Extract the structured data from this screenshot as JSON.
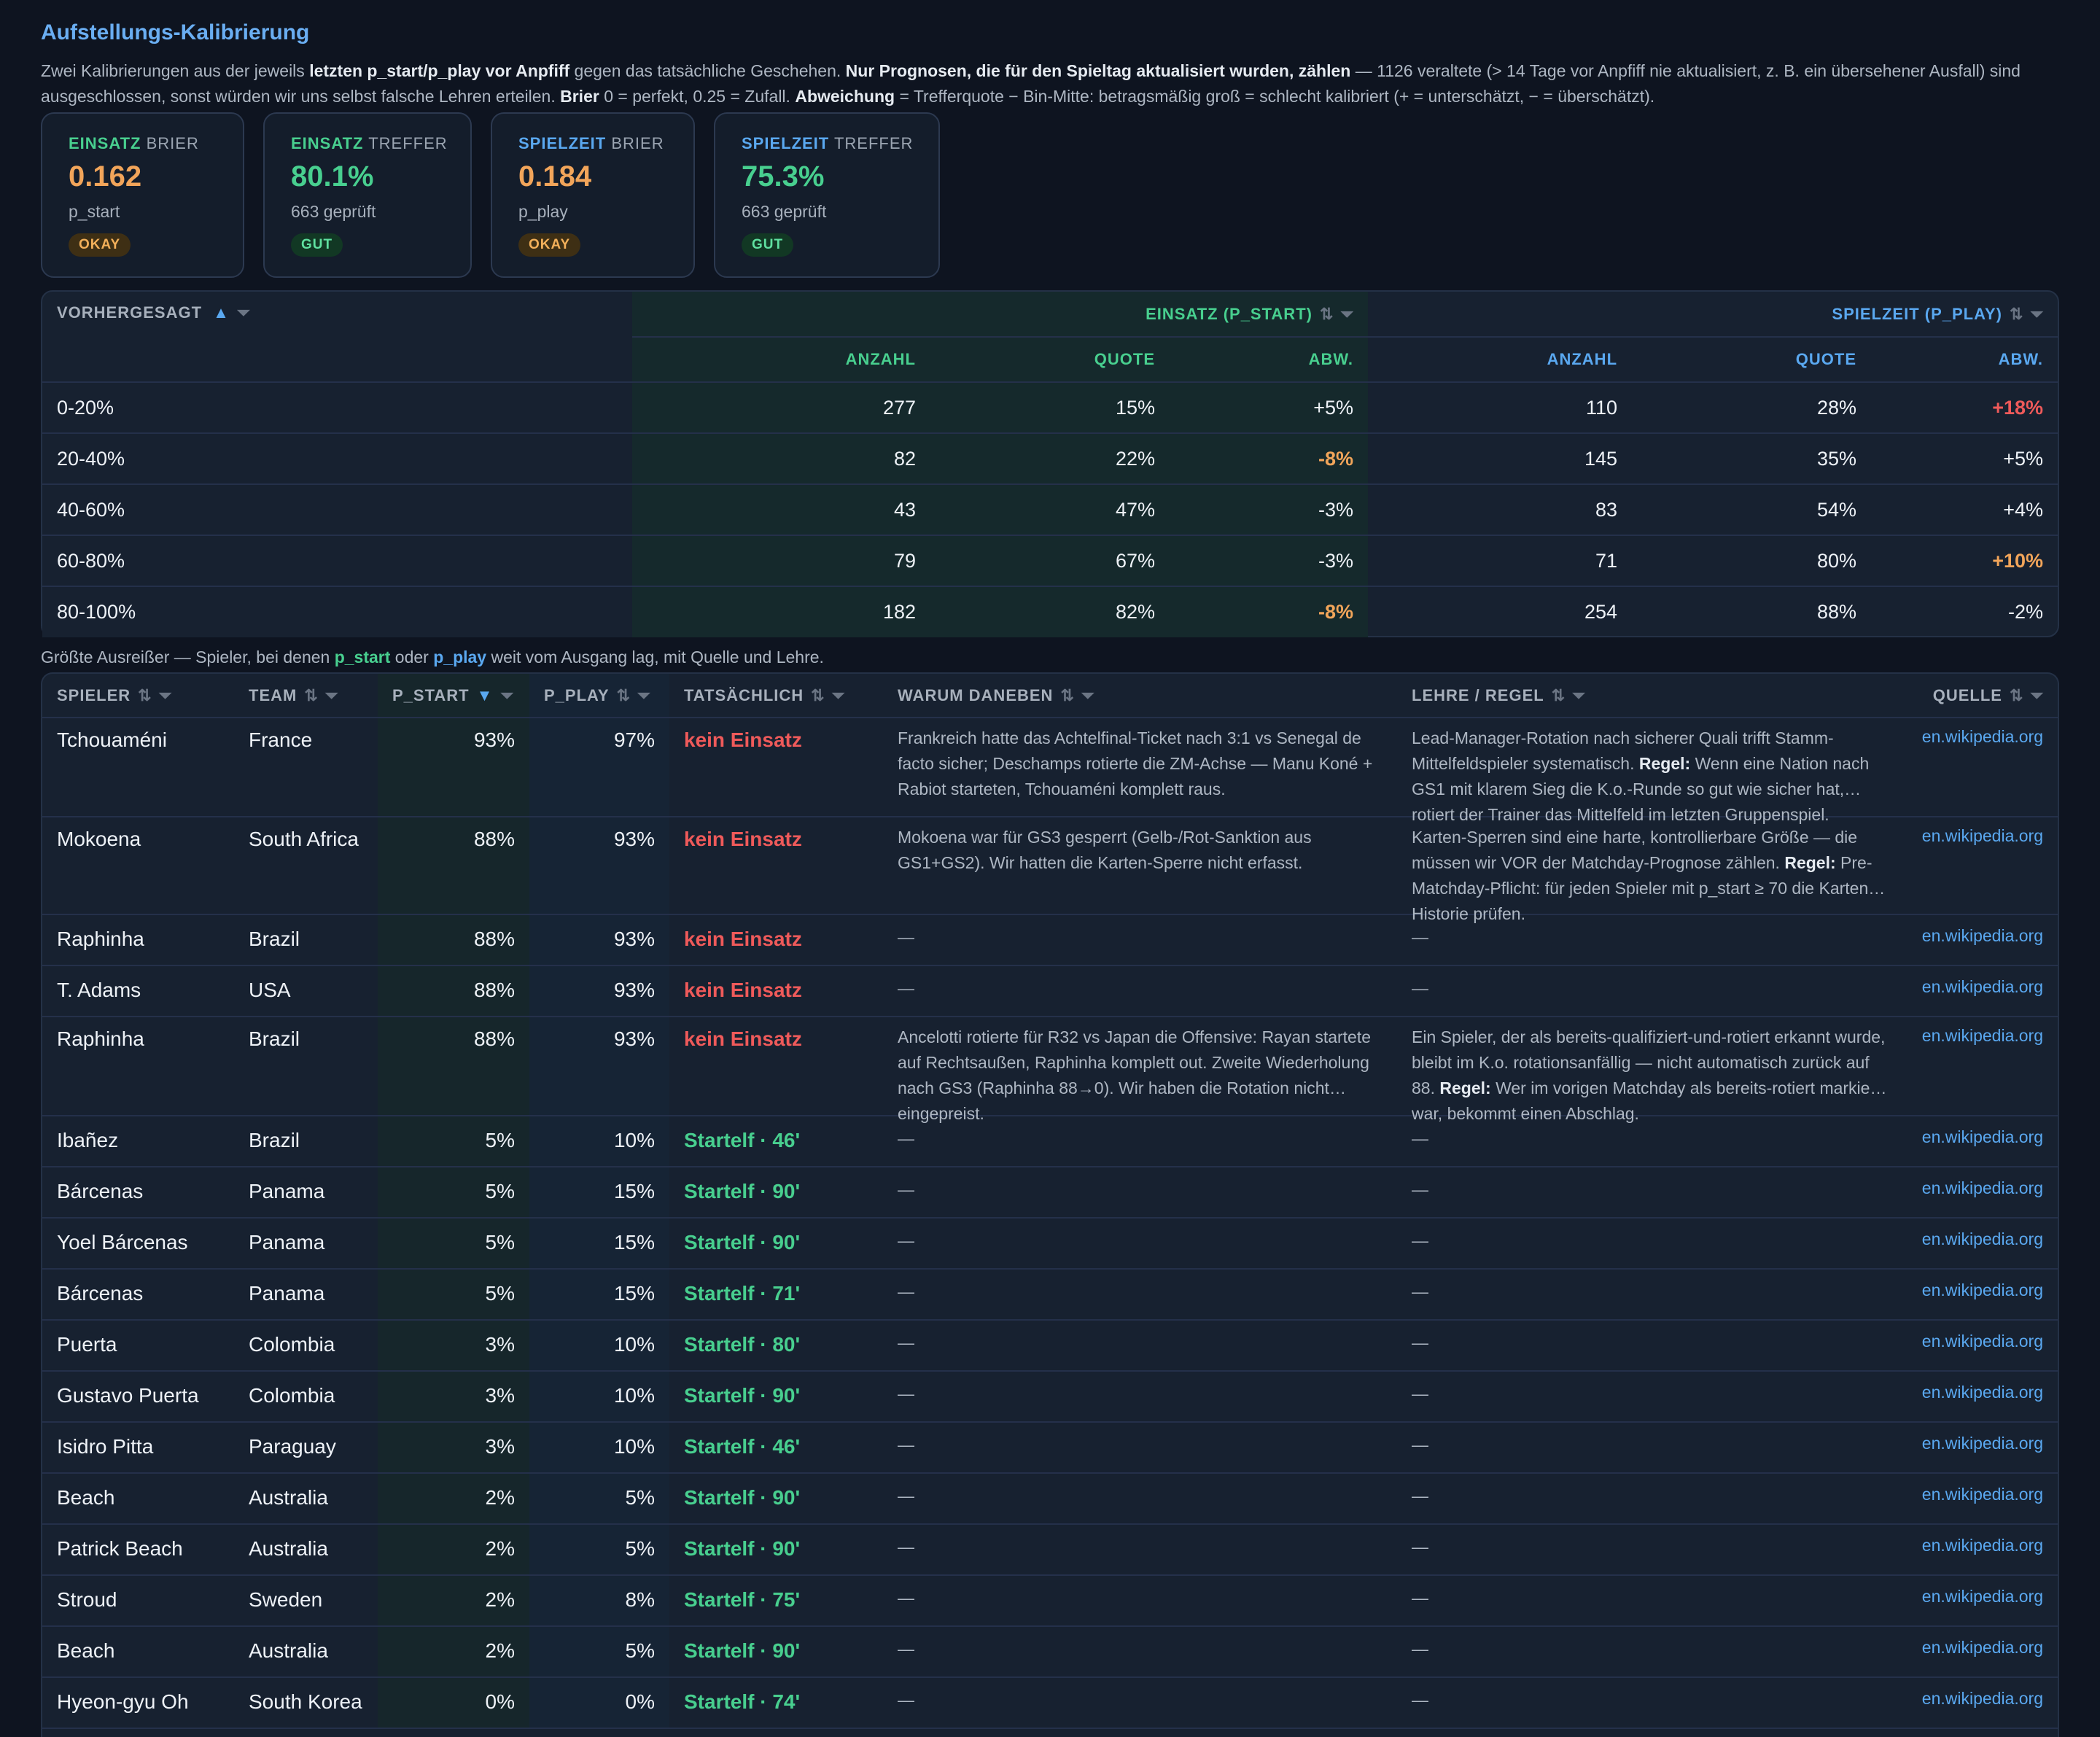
{
  "header": {
    "title": "Aufstellungs-Kalibrierung",
    "intro": {
      "p1": "Zwei Kalibrierungen aus der jeweils ",
      "b1": "letzten p_start/p_play vor Anpfiff",
      "p2": " gegen das tatsächliche Geschehen. ",
      "b2": "Nur Prognosen, die für den Spieltag aktualisiert wurden, zählen",
      "p3": " — 1126 veraltete (> 14 Tage vor Anpfiff nie aktualisiert, z. B. ein übersehener Ausfall) sind ausgeschlossen, sonst würden wir uns selbst falsche Lehren erteilen. ",
      "b3": "Brier",
      "p4": " 0 = perfekt, 0.25 = Zufall. ",
      "b4": "Abweichung",
      "p5": " = Trefferquote − Bin-Mitte: betragsmäßig groß = schlecht kalibriert (+ = unterschätzt, − = überschätzt)."
    }
  },
  "cards": [
    {
      "key": "EINSATZ",
      "metric": " BRIER",
      "value": "0.162",
      "sub": "p_start",
      "badge": "OKAY",
      "key_color": "#48cf8f",
      "value_color": "#f2a55a",
      "badge_kind": "okay"
    },
    {
      "key": "EINSATZ",
      "metric": " TREFFER",
      "value": "80.1%",
      "sub": "663 geprüft",
      "badge": "GUT",
      "key_color": "#48cf8f",
      "value_color": "#48cf8f",
      "badge_kind": "gut"
    },
    {
      "key": "SPIELZEIT",
      "metric": " BRIER",
      "value": "0.184",
      "sub": "p_play",
      "badge": "OKAY",
      "key_color": "#5aa8f0",
      "value_color": "#f2a55a",
      "badge_kind": "okay"
    },
    {
      "key": "SPIELZEIT",
      "metric": " TREFFER",
      "value": "75.3%",
      "sub": "663 geprüft",
      "badge": "GUT",
      "key_color": "#5aa8f0",
      "value_color": "#48cf8f",
      "badge_kind": "gut"
    }
  ],
  "calibration": {
    "header_bin": "VORHERGESAGT",
    "group_start": "EINSATZ (P_START)",
    "group_play": "SPIELZEIT (P_PLAY)",
    "col_count": "ANZAHL",
    "col_rate": "QUOTE",
    "col_dev": "ABW.",
    "rows": [
      {
        "bin": "0-20%",
        "s_count": "277",
        "s_rate": "15%",
        "s_dev": "+5%",
        "s_tone": "normal",
        "p_count": "110",
        "p_rate": "28%",
        "p_dev": "+18%",
        "p_tone": "red"
      },
      {
        "bin": "20-40%",
        "s_count": "82",
        "s_rate": "22%",
        "s_dev": "-8%",
        "s_tone": "orange",
        "p_count": "145",
        "p_rate": "35%",
        "p_dev": "+5%",
        "p_tone": "normal"
      },
      {
        "bin": "40-60%",
        "s_count": "43",
        "s_rate": "47%",
        "s_dev": "-3%",
        "s_tone": "normal",
        "p_count": "83",
        "p_rate": "54%",
        "p_dev": "+4%",
        "p_tone": "normal"
      },
      {
        "bin": "60-80%",
        "s_count": "79",
        "s_rate": "67%",
        "s_dev": "-3%",
        "s_tone": "normal",
        "p_count": "71",
        "p_rate": "80%",
        "p_dev": "+10%",
        "p_tone": "orange"
      },
      {
        "bin": "80-100%",
        "s_count": "182",
        "s_rate": "82%",
        "s_dev": "-8%",
        "s_tone": "orange",
        "p_count": "254",
        "p_rate": "88%",
        "p_dev": "-2%",
        "p_tone": "normal"
      }
    ]
  },
  "outliers": {
    "caption": {
      "p1": "Größte Ausreißer — Spieler, bei denen ",
      "b1": "p_start",
      "p2": " oder ",
      "b2": "p_play",
      "p3": " weit vom Ausgang lag, mit Quelle und Lehre."
    },
    "headers": {
      "player": "SPIELER",
      "team": "TEAM",
      "p_start": "P_START",
      "p_play": "P_PLAY",
      "actual": "TATSÄCHLICH",
      "why": "WARUM DANEBEN",
      "lesson": "LEHRE / REGEL",
      "source": "QUELLE"
    },
    "rows": [
      {
        "player": "Tchouaméni",
        "team": "France",
        "p_start": "93%",
        "p_play": "97%",
        "actual": "kein Einsatz",
        "actual_kind": "miss",
        "why": "Frankreich hatte das Achtelfinal-Ticket nach 3:1 vs Senegal de facto sicher; Deschamps rotierte die ZM-Achse — Manu Koné + Rabiot starteten, Tchouaméni komplett raus.",
        "lesson": "Lead-Manager-Rotation nach sicherer Quali trifft Stamm-Mittelfeldspieler systematisch.",
        "lesson_bold": "Regel:",
        "lesson_rest": "Wenn eine Nation nach GS1 mit klarem Sieg die K.o.-Runde so gut wie sicher hat, rotiert der Trainer das Mittelfeld im letzten Gruppenspiel.",
        "source": "en.wikipedia.org"
      },
      {
        "player": "Mokoena",
        "team": "South Africa",
        "p_start": "88%",
        "p_play": "93%",
        "actual": "kein Einsatz",
        "actual_kind": "miss",
        "why": "Mokoena war für GS3 gesperrt (Gelb-/Rot-Sanktion aus GS1+GS2). Wir hatten die Karten-Sperre nicht erfasst.",
        "lesson": "Karten-Sperren sind eine harte, kontrollierbare Größe — die müssen wir VOR der Matchday-Prognose zählen.",
        "lesson_bold": "Regel:",
        "lesson_rest": "Pre-Matchday-Pflicht: für jeden Spieler mit p_start ≥ 70 die Karten-Historie prüfen.",
        "source": "en.wikipedia.org"
      },
      {
        "player": "Raphinha",
        "team": "Brazil",
        "p_start": "88%",
        "p_play": "93%",
        "actual": "kein Einsatz",
        "actual_kind": "miss",
        "why": "—",
        "lesson": "—",
        "lesson_bold": "",
        "lesson_rest": "",
        "source": "en.wikipedia.org"
      },
      {
        "player": "T. Adams",
        "team": "USA",
        "p_start": "88%",
        "p_play": "93%",
        "actual": "kein Einsatz",
        "actual_kind": "miss",
        "why": "—",
        "lesson": "—",
        "lesson_bold": "",
        "lesson_rest": "",
        "source": "en.wikipedia.org"
      },
      {
        "player": "Raphinha",
        "team": "Brazil",
        "p_start": "88%",
        "p_play": "93%",
        "actual": "kein Einsatz",
        "actual_kind": "miss",
        "why": "Ancelotti rotierte für R32 vs Japan die Offensive: Rayan startete auf Rechtsaußen, Raphinha komplett out. Zweite Wiederholung nach GS3 (Raphinha 88→0). Wir haben die Rotation nicht eingepreist.",
        "lesson": "Ein Spieler, der als bereits-qualifiziert-und-rotiert erkannt wurde, bleibt im K.o. rotationsanfällig — nicht automatisch zurück auf 88.",
        "lesson_bold": "Regel:",
        "lesson_rest": "Wer im vorigen Matchday als bereits-rotiert markiert war, bekommt einen Abschlag.",
        "source": "en.wikipedia.org"
      },
      {
        "player": "Ibañez",
        "team": "Brazil",
        "p_start": "5%",
        "p_play": "10%",
        "actual": "Startelf · 46'",
        "actual_kind": "hit",
        "why": "—",
        "lesson": "—",
        "lesson_bold": "",
        "lesson_rest": "",
        "source": "en.wikipedia.org"
      },
      {
        "player": "Bárcenas",
        "team": "Panama",
        "p_start": "5%",
        "p_play": "15%",
        "actual": "Startelf · 90'",
        "actual_kind": "hit",
        "why": "—",
        "lesson": "—",
        "lesson_bold": "",
        "lesson_rest": "",
        "source": "en.wikipedia.org"
      },
      {
        "player": "Yoel Bárcenas",
        "team": "Panama",
        "p_start": "5%",
        "p_play": "15%",
        "actual": "Startelf · 90'",
        "actual_kind": "hit",
        "why": "—",
        "lesson": "—",
        "lesson_bold": "",
        "lesson_rest": "",
        "source": "en.wikipedia.org"
      },
      {
        "player": "Bárcenas",
        "team": "Panama",
        "p_start": "5%",
        "p_play": "15%",
        "actual": "Startelf · 71'",
        "actual_kind": "hit",
        "why": "—",
        "lesson": "—",
        "lesson_bold": "",
        "lesson_rest": "",
        "source": "en.wikipedia.org"
      },
      {
        "player": "Puerta",
        "team": "Colombia",
        "p_start": "3%",
        "p_play": "10%",
        "actual": "Startelf · 80'",
        "actual_kind": "hit",
        "why": "—",
        "lesson": "—",
        "lesson_bold": "",
        "lesson_rest": "",
        "source": "en.wikipedia.org"
      },
      {
        "player": "Gustavo Puerta",
        "team": "Colombia",
        "p_start": "3%",
        "p_play": "10%",
        "actual": "Startelf · 90'",
        "actual_kind": "hit",
        "why": "—",
        "lesson": "—",
        "lesson_bold": "",
        "lesson_rest": "",
        "source": "en.wikipedia.org"
      },
      {
        "player": "Isidro Pitta",
        "team": "Paraguay",
        "p_start": "3%",
        "p_play": "10%",
        "actual": "Startelf · 46'",
        "actual_kind": "hit",
        "why": "—",
        "lesson": "—",
        "lesson_bold": "",
        "lesson_rest": "",
        "source": "en.wikipedia.org"
      },
      {
        "player": "Beach",
        "team": "Australia",
        "p_start": "2%",
        "p_play": "5%",
        "actual": "Startelf · 90'",
        "actual_kind": "hit",
        "why": "—",
        "lesson": "—",
        "lesson_bold": "",
        "lesson_rest": "",
        "source": "en.wikipedia.org"
      },
      {
        "player": "Patrick Beach",
        "team": "Australia",
        "p_start": "2%",
        "p_play": "5%",
        "actual": "Startelf · 90'",
        "actual_kind": "hit",
        "why": "—",
        "lesson": "—",
        "lesson_bold": "",
        "lesson_rest": "",
        "source": "en.wikipedia.org"
      },
      {
        "player": "Stroud",
        "team": "Sweden",
        "p_start": "2%",
        "p_play": "8%",
        "actual": "Startelf · 75'",
        "actual_kind": "hit",
        "why": "—",
        "lesson": "—",
        "lesson_bold": "",
        "lesson_rest": "",
        "source": "en.wikipedia.org"
      },
      {
        "player": "Beach",
        "team": "Australia",
        "p_start": "2%",
        "p_play": "5%",
        "actual": "Startelf · 90'",
        "actual_kind": "hit",
        "why": "—",
        "lesson": "—",
        "lesson_bold": "",
        "lesson_rest": "",
        "source": "en.wikipedia.org"
      },
      {
        "player": "Hyeon-gyu Oh",
        "team": "South Korea",
        "p_start": "0%",
        "p_play": "0%",
        "actual": "Startelf · 74'",
        "actual_kind": "hit",
        "why": "—",
        "lesson": "—",
        "lesson_bold": "",
        "lesson_rest": "",
        "source": "en.wikipedia.org"
      }
    ]
  },
  "icons": {
    "sort": "sort-icon",
    "filter": "filter-icon",
    "sort_asc": "sort-ascending-icon",
    "sort_desc": "sort-descending-icon"
  },
  "colors": {
    "green": "#48cf8f",
    "blue": "#5aa8f0",
    "orange": "#f2a55a",
    "red": "#ef5a5a",
    "background": "#0e1420"
  }
}
